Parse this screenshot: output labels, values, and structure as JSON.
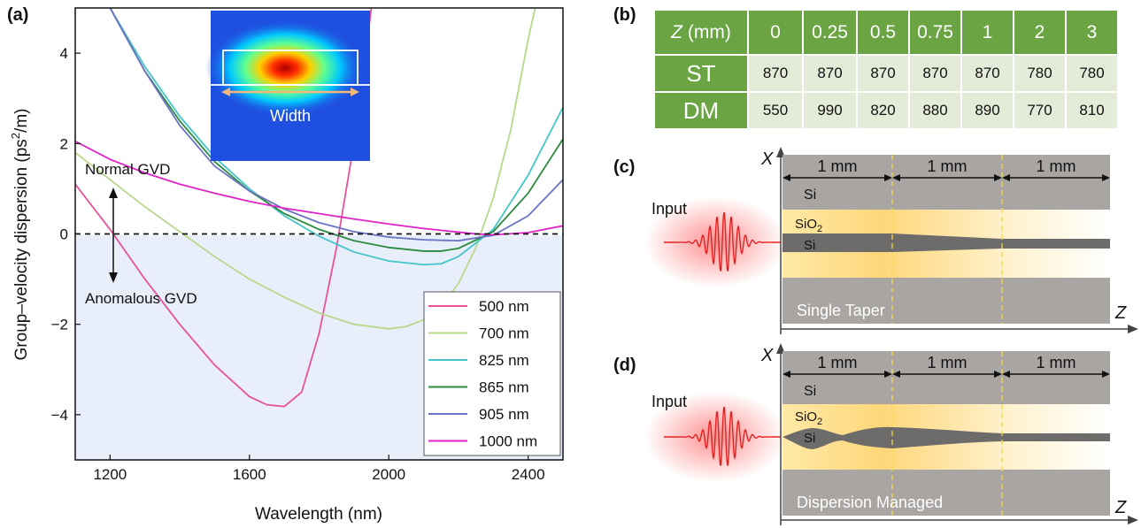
{
  "panels": {
    "a": "(a)",
    "b": "(b)",
    "c": "(c)",
    "d": "(d)"
  },
  "chart_data": {
    "type": "line",
    "xlabel": "Wavelength (nm)",
    "ylabel_main": "Group–velocity dispersion (ps",
    "ylabel_sup": "2",
    "ylabel_end": "/m)",
    "xlim": [
      1100,
      2500
    ],
    "ylim": [
      -5,
      5
    ],
    "xticks": [
      1200,
      1600,
      2000,
      2400
    ],
    "xtick_labels": [
      "1200",
      "1600",
      "2000",
      "2400"
    ],
    "yticks": [
      -4,
      -2,
      0,
      2,
      4
    ],
    "ytick_labels": [
      "−4",
      "−2",
      "0",
      "2",
      "4"
    ],
    "zero_line": "dashed",
    "anomalous_region_color": "#e9eefb",
    "annotations": {
      "normal": "Normal GVD",
      "anomalous": "Anomalous GVD"
    },
    "inset_label": "Width",
    "legend_position": "bottom-right",
    "series": [
      {
        "name": "500 nm",
        "color": "#e8529a",
        "x": [
          1100,
          1200,
          1300,
          1400,
          1500,
          1600,
          1650,
          1700,
          1750,
          1800,
          1850,
          1900,
          1950
        ],
        "y": [
          1.1,
          0.1,
          -1.0,
          -2.0,
          -2.9,
          -3.6,
          -3.78,
          -3.82,
          -3.5,
          -2.2,
          -0.3,
          2.0,
          5.0
        ]
      },
      {
        "name": "700 nm",
        "color": "#b8d88a",
        "x": [
          1100,
          1200,
          1300,
          1400,
          1500,
          1600,
          1700,
          1800,
          1900,
          2000,
          2050,
          2100,
          2150,
          2200,
          2250,
          2300,
          2350,
          2400,
          2420
        ],
        "y": [
          1.8,
          1.2,
          0.6,
          0.05,
          -0.5,
          -1.0,
          -1.4,
          -1.75,
          -2.0,
          -2.1,
          -2.05,
          -1.9,
          -1.6,
          -1.1,
          -0.3,
          0.8,
          2.3,
          4.3,
          5.0
        ]
      },
      {
        "name": "825 nm",
        "color": "#44c6c8",
        "x": [
          1200,
          1300,
          1400,
          1500,
          1600,
          1700,
          1800,
          1900,
          2000,
          2100,
          2150,
          2200,
          2300,
          2400,
          2500
        ],
        "y": [
          5.0,
          3.7,
          2.6,
          1.7,
          1.0,
          0.4,
          -0.05,
          -0.4,
          -0.6,
          -0.68,
          -0.66,
          -0.5,
          0.1,
          1.3,
          2.8
        ]
      },
      {
        "name": "865 nm",
        "color": "#2b8a3e",
        "x": [
          1200,
          1300,
          1400,
          1500,
          1600,
          1700,
          1800,
          1900,
          2000,
          2100,
          2150,
          2200,
          2300,
          2400,
          2500
        ],
        "y": [
          5.0,
          3.6,
          2.5,
          1.6,
          0.95,
          0.45,
          0.1,
          -0.15,
          -0.3,
          -0.38,
          -0.38,
          -0.32,
          0.05,
          0.9,
          2.1
        ]
      },
      {
        "name": "905 nm",
        "color": "#6b74c4",
        "x": [
          1200,
          1300,
          1400,
          1500,
          1600,
          1700,
          1800,
          1900,
          2000,
          2100,
          2200,
          2300,
          2400,
          2500
        ],
        "y": [
          5.0,
          3.6,
          2.4,
          1.5,
          0.95,
          0.55,
          0.25,
          0.05,
          -0.07,
          -0.13,
          -0.15,
          -0.03,
          0.4,
          1.2
        ]
      },
      {
        "name": "1000 nm",
        "color": "#e023c8",
        "x": [
          1100,
          1200,
          1300,
          1400,
          1500,
          1600,
          1700,
          1800,
          1900,
          2000,
          2100,
          2200,
          2250,
          2300,
          2400,
          2500
        ],
        "y": [
          2.05,
          1.65,
          1.35,
          1.1,
          0.9,
          0.72,
          0.57,
          0.45,
          0.33,
          0.22,
          0.12,
          0.04,
          0.0,
          -0.02,
          0.03,
          0.18
        ]
      }
    ]
  },
  "table_b": {
    "header_label": "(mm)",
    "header_var": "Z",
    "columns": [
      "0",
      "0.25",
      "0.5",
      "0.75",
      "1",
      "2",
      "3"
    ],
    "rows": [
      {
        "label": "ST",
        "values": [
          "870",
          "870",
          "870",
          "870",
          "870",
          "780",
          "780"
        ]
      },
      {
        "label": "DM",
        "values": [
          "550",
          "990",
          "820",
          "880",
          "890",
          "770",
          "810"
        ]
      }
    ]
  },
  "diagram_c": {
    "x_axis": "X",
    "z_axis": "Z",
    "input": "Input",
    "segments": [
      "1 mm",
      "1 mm",
      "1 mm"
    ],
    "si_top": "Si",
    "sio2": "SiO",
    "sio2_sub": "2",
    "si_core": "Si",
    "title": "Single Taper"
  },
  "diagram_d": {
    "x_axis": "X",
    "z_axis": "Z",
    "input": "Input",
    "segments": [
      "1 mm",
      "1 mm",
      "1 mm"
    ],
    "si_top": "Si",
    "sio2": "SiO",
    "sio2_sub": "2",
    "si_core": "Si",
    "title": "Dispersion Managed"
  }
}
